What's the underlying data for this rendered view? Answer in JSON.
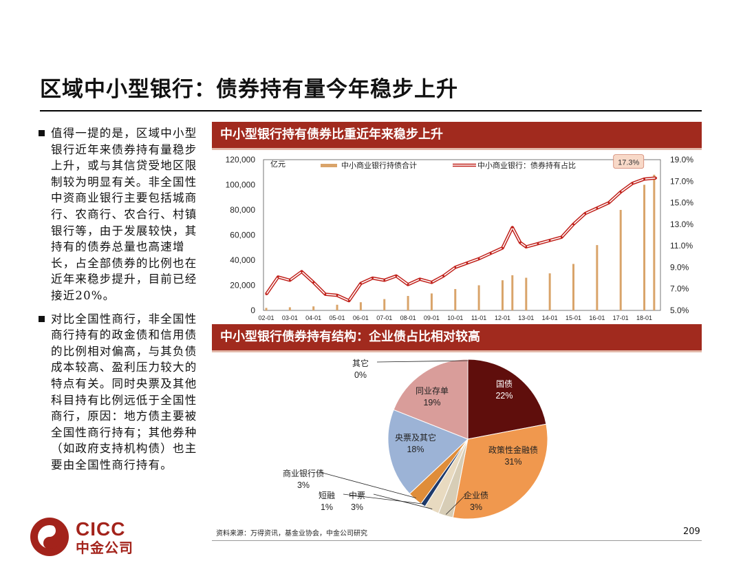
{
  "page": {
    "title": "区域中小型银行：债券持有量今年稳步上升",
    "bullets": [
      "值得一提的是，区域中小型银行近年来债券持有量稳步上升，或与其信贷受地区限制较为明显有关。非全国性中资商业银行主要包括城商行、农商行、农合行、村镇银行等，由于发展较快，其持有的债券总量也高速增长，占全部债券的比例也在近年来稳步提升，目前已经接近20%。",
      "对比全国性商行，非全国性商行持有的政金债和信用债的比例相对偏高，与其负债成本较高、盈利压力较大的特点有关。同时央票及其他科目持有比例远低于全国性商行，原因：地方债主要被全国性商行持有；其他券种（如政府支持机构债）也主要由全国性商行持有。"
    ],
    "section1_title": "中小型银行持有债券比重近年来稳步上升",
    "section2_title": "中小型银行债券持有结构：企业债占比相对较高",
    "source": "资料来源：万得资讯，基金业协会，中金公司研究",
    "page_number": "209",
    "logo_en": "CICC",
    "logo_cn": "中金公司",
    "brand_color": "#a12a1e"
  },
  "chart_data": [
    {
      "type": "bar+line",
      "title": "中小型银行持有债券比重近年来稳步上升",
      "y_left_unit": "亿元",
      "y_left_ticks": [
        "0",
        "20,000",
        "40,000",
        "60,000",
        "80,000",
        "100,000",
        "120,000"
      ],
      "y_left_range": [
        0,
        120000
      ],
      "y_right_ticks": [
        "5.0%",
        "7.0%",
        "9.0%",
        "11.0%",
        "13.0%",
        "15.0%",
        "17.0%",
        "19.0%"
      ],
      "y_right_range": [
        5.0,
        19.0
      ],
      "x_tick_labels": [
        "02-01",
        "03-01",
        "04-01",
        "05-01",
        "06-01",
        "07-01",
        "08-01",
        "09-01",
        "10-01",
        "11-01",
        "12-01",
        "13-01",
        "14-01",
        "15-01",
        "16-01",
        "17-01",
        "18-01"
      ],
      "legend_position": "top",
      "annotation": "17.3%",
      "series": [
        {
          "name": "中小商业银行持债合计",
          "kind": "bar",
          "axis": "left",
          "color": "#d9a46a",
          "x": [
            "02-01",
            "03-01",
            "04-01",
            "05-01",
            "06-01",
            "07-01",
            "08-01",
            "09-01",
            "10-01",
            "11-01",
            "12-01",
            "12-06",
            "13-01",
            "14-01",
            "15-01",
            "16-01",
            "17-01",
            "18-01",
            "18-06"
          ],
          "values": [
            2000,
            2500,
            3200,
            4500,
            6500,
            9000,
            11500,
            13500,
            17000,
            20000,
            24000,
            28000,
            26000,
            29500,
            37000,
            52000,
            80000,
            100000,
            108000
          ]
        },
        {
          "name": "中小商业银行：债券持有占比",
          "kind": "line",
          "axis": "right",
          "color": "#c0201a",
          "x": [
            "02-01",
            "02-07",
            "03-01",
            "03-07",
            "04-01",
            "04-07",
            "05-01",
            "05-07",
            "06-01",
            "06-07",
            "07-01",
            "07-07",
            "08-01",
            "08-07",
            "09-01",
            "09-07",
            "10-01",
            "10-07",
            "11-01",
            "11-07",
            "12-01",
            "12-06",
            "12-10",
            "13-01",
            "13-07",
            "14-01",
            "14-07",
            "15-01",
            "15-07",
            "16-01",
            "16-07",
            "17-01",
            "17-07",
            "18-01",
            "18-07"
          ],
          "values": [
            6.5,
            8.1,
            7.8,
            8.6,
            7.6,
            6.5,
            6.4,
            5.9,
            7.5,
            8.0,
            7.8,
            8.2,
            7.4,
            7.9,
            7.6,
            8.2,
            9.0,
            9.4,
            9.8,
            10.3,
            10.8,
            12.7,
            11.3,
            10.9,
            11.2,
            11.5,
            11.8,
            13.0,
            14.0,
            14.5,
            15.0,
            16.0,
            16.8,
            17.2,
            17.3
          ]
        }
      ]
    },
    {
      "type": "pie",
      "title": "中小型银行债券持有结构：企业债占比相对较高",
      "slices": [
        {
          "label": "国债",
          "pct": "22%",
          "value": 22,
          "color": "#5f0e0c"
        },
        {
          "label": "政策性金融债",
          "pct": "31%",
          "value": 31,
          "color": "#f0984e"
        },
        {
          "label": "企业债",
          "pct": "3%",
          "value": 3,
          "color": "#d7cdb6"
        },
        {
          "label": "中票",
          "pct": "3%",
          "value": 3,
          "color": "#e8dac0"
        },
        {
          "label": "短融",
          "pct": "1%",
          "value": 1,
          "color": "#1e3a6b"
        },
        {
          "label": "商业银行债",
          "pct": "3%",
          "value": 3,
          "color": "#df8d3a"
        },
        {
          "label": "央票及其它",
          "pct": "18%",
          "value": 18,
          "color": "#9cb3d6"
        },
        {
          "label": "同业存单",
          "pct": "19%",
          "value": 19,
          "color": "#d99d9a"
        },
        {
          "label": "其它",
          "pct": "0%",
          "value": 0,
          "color": "#c9c9c9"
        }
      ]
    }
  ]
}
